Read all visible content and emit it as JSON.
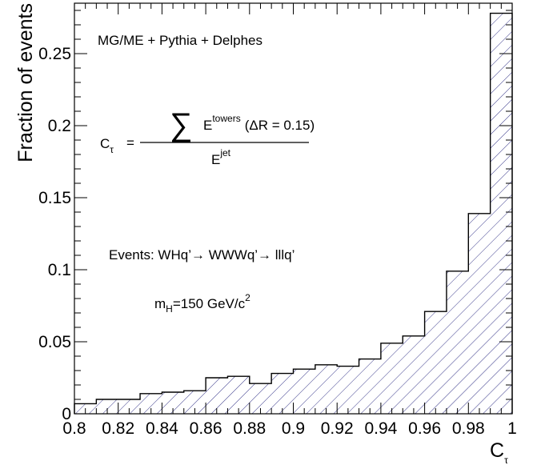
{
  "chart_data": {
    "type": "bar",
    "histogram": true,
    "xlabel": "C",
    "xlabel_sub": "τ",
    "ylabel": "Fraction of events",
    "xlim": [
      0.8,
      1.0
    ],
    "ylim": [
      0,
      0.285
    ],
    "bin_width": 0.01,
    "x_ticks": [
      {
        "value": 0.8,
        "label": "0.8"
      },
      {
        "value": 0.82,
        "label": "0.82"
      },
      {
        "value": 0.84,
        "label": "0.84"
      },
      {
        "value": 0.86,
        "label": "0.86"
      },
      {
        "value": 0.88,
        "label": "0.88"
      },
      {
        "value": 0.9,
        "label": "0.9"
      },
      {
        "value": 0.92,
        "label": "0.92"
      },
      {
        "value": 0.94,
        "label": "0.94"
      },
      {
        "value": 0.96,
        "label": "0.96"
      },
      {
        "value": 0.98,
        "label": "0.98"
      },
      {
        "value": 1.0,
        "label": "1"
      }
    ],
    "y_ticks": [
      {
        "value": 0,
        "label": "0"
      },
      {
        "value": 0.05,
        "label": "0.05"
      },
      {
        "value": 0.1,
        "label": "0.1"
      },
      {
        "value": 0.15,
        "label": "0.15"
      },
      {
        "value": 0.2,
        "label": "0.2"
      },
      {
        "value": 0.25,
        "label": "0.25"
      }
    ],
    "bins": [
      {
        "x": 0.8,
        "value": 0.007
      },
      {
        "x": 0.81,
        "value": 0.01
      },
      {
        "x": 0.82,
        "value": 0.01
      },
      {
        "x": 0.83,
        "value": 0.014
      },
      {
        "x": 0.84,
        "value": 0.015
      },
      {
        "x": 0.85,
        "value": 0.016
      },
      {
        "x": 0.86,
        "value": 0.025
      },
      {
        "x": 0.87,
        "value": 0.026
      },
      {
        "x": 0.88,
        "value": 0.021
      },
      {
        "x": 0.89,
        "value": 0.028
      },
      {
        "x": 0.9,
        "value": 0.031
      },
      {
        "x": 0.91,
        "value": 0.034
      },
      {
        "x": 0.92,
        "value": 0.033
      },
      {
        "x": 0.93,
        "value": 0.038
      },
      {
        "x": 0.94,
        "value": 0.049
      },
      {
        "x": 0.95,
        "value": 0.054
      },
      {
        "x": 0.96,
        "value": 0.071
      },
      {
        "x": 0.97,
        "value": 0.099
      },
      {
        "x": 0.98,
        "value": 0.139
      },
      {
        "x": 0.99,
        "value": 0.278
      }
    ],
    "hatch_color": "#3a3a8c",
    "annotations": {
      "generator": "MG/ME + Pythia + Delphes",
      "formula_lhs": "C",
      "formula_lhs_sub": "τ",
      "formula_equals": "=",
      "formula_sum": "∑",
      "formula_num_E": "E",
      "formula_num_sup": "towers",
      "formula_num_cond": "(ΔR = 0.15)",
      "formula_den_E": "E",
      "formula_den_sup": "jet",
      "events": "Events: WHq’→ WWWq’→ lllq’",
      "mass_m": "m",
      "mass_sub": "H",
      "mass_val": "=150 GeV/c",
      "mass_sup": "2"
    }
  }
}
